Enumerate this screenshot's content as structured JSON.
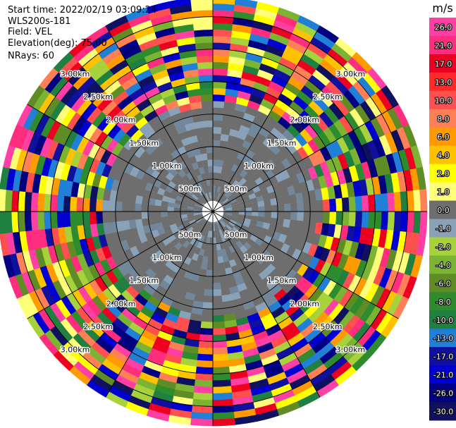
{
  "header": {
    "start_time": "Start time: 2022/02/19 03:09:24",
    "instrument": "WLS200s-181",
    "field": "Field: VEL",
    "elevation": "Elevation(deg): 75.00",
    "nrays": "NRays: 60"
  },
  "chart_data": {
    "type": "heatmap",
    "projection": "polar-ppi",
    "nrays": 60,
    "range_rings_labels": [
      "500m",
      "1.00km",
      "1.50km",
      "2.00km",
      "2.50km",
      "3.00km"
    ],
    "range_rings_km": [
      0.5,
      1.0,
      1.5,
      2.0,
      2.5,
      3.0
    ],
    "max_range_km": 3.3,
    "gate_size_km": 0.1,
    "min_range_km": 0.1,
    "clutter_range_km": 1.8,
    "clutter_value": 0.0,
    "colorbar": {
      "unit": "m/s",
      "ticks": [
        "26.0",
        "21.0",
        "17.0",
        "13.0",
        "10.0",
        "8.0",
        "6.0",
        "4.0",
        "2.0",
        "1.0",
        "0.0",
        "-1.0",
        "-2.0",
        "-4.0",
        "-6.0",
        "-8.0",
        "-10.0",
        "-13.0",
        "-17.0",
        "-21.0",
        "-26.0",
        "-30.0"
      ],
      "colors": [
        "#ff3fa3",
        "#ff2d7d",
        "#ee0020",
        "#ff2a2a",
        "#ff5050",
        "#ff7f56",
        "#ff9a00",
        "#ffc200",
        "#ffff00",
        "#ffff7a",
        "#6e6e6e",
        "#8aa2b8",
        "#a8d23c",
        "#7ab432",
        "#608c26",
        "#2e8c2e",
        "#208040",
        "#2080d8",
        "#1010a0",
        "#0000d0",
        "#000080",
        "#101060"
      ]
    },
    "palette": [
      "#ff3fa3",
      "#ff2d7d",
      "#ee0020",
      "#ff5050",
      "#ff7f56",
      "#ff9a00",
      "#ffc200",
      "#ffff00",
      "#ffff7a",
      "#a8d23c",
      "#7ab432",
      "#608c26",
      "#2e8c2e",
      "#208040",
      "#2080d8",
      "#0000d0",
      "#1010a0",
      "#000080",
      "#101060"
    ],
    "clutter_colors": [
      "#6e6e6e",
      "#73879a",
      "#8aa2b8"
    ]
  }
}
